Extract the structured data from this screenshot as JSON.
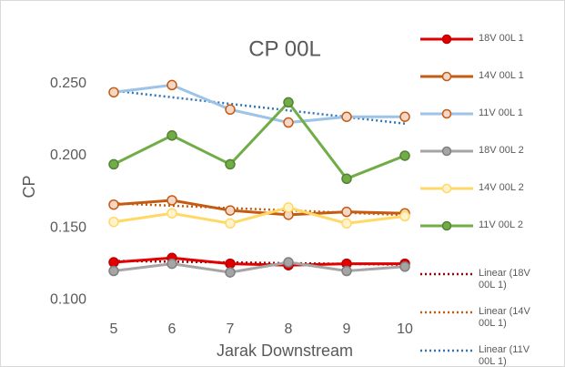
{
  "chart_data": {
    "type": "line",
    "title": "CP 00L",
    "x_label": "Jarak Downstream",
    "y_label": "CP",
    "x": [
      5,
      6,
      7,
      8,
      9,
      10
    ],
    "xlim": [
      5,
      10
    ],
    "ylim": [
      0.09,
      0.26
    ],
    "yticks": [
      {
        "value": 0.1,
        "label": "0.100"
      },
      {
        "value": 0.15,
        "label": "0.150"
      },
      {
        "value": 0.2,
        "label": "0.200"
      },
      {
        "value": 0.25,
        "label": "0.250"
      }
    ],
    "series": [
      {
        "name": "18V 00L 1",
        "color": "#e00000",
        "marker_color": "#c00000",
        "marker_fill": "#e00000",
        "values": [
          0.126,
          0.129,
          0.125,
          0.124,
          0.125,
          0.125
        ],
        "trendline": "Linear (18V 00L 1)",
        "trend_color": "#a00000"
      },
      {
        "name": "14V 00L 1",
        "color": "#c55a11",
        "marker_color": "#c55a11",
        "marker_fill": "#f4d7c6",
        "values": [
          0.166,
          0.169,
          0.162,
          0.159,
          0.161,
          0.16
        ],
        "trendline": "Linear (14V 00L 1)",
        "trend_color": "#c55a11"
      },
      {
        "name": "11V 00L 1",
        "color": "#9dc3e6",
        "marker_color": "#c55a11",
        "marker_fill": "#f4d7c6",
        "values": [
          0.244,
          0.249,
          0.232,
          0.223,
          0.227,
          0.227
        ],
        "trendline": "Linear (11V 00L 1)",
        "trend_color": "#2e75b6"
      },
      {
        "name": "18V 00L 2",
        "color": "#a5a5a5",
        "marker_color": "#7f7f7f",
        "marker_fill": "#a5a5a5",
        "values": [
          0.12,
          0.125,
          0.119,
          0.126,
          0.12,
          0.123
        ]
      },
      {
        "name": "14V 00L 2",
        "color": "#ffd966",
        "marker_color": "#ffd966",
        "marker_fill": "#fff2cc",
        "values": [
          0.154,
          0.16,
          0.153,
          0.164,
          0.153,
          0.158
        ]
      },
      {
        "name": "11V 00L 2",
        "color": "#70ad47",
        "marker_color": "#548235",
        "marker_fill": "#70ad47",
        "values": [
          0.194,
          0.214,
          0.194,
          0.237,
          0.184,
          0.2
        ],
        "trendline": null
      }
    ]
  }
}
